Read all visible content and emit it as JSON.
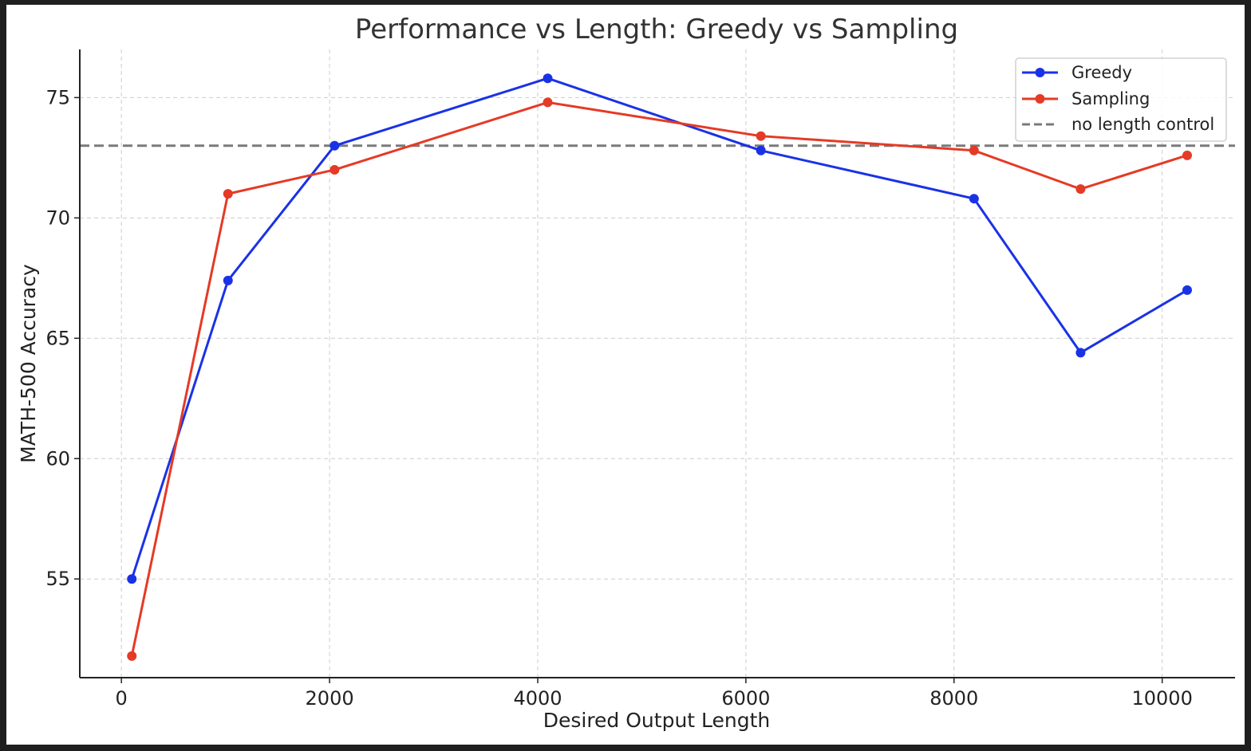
{
  "chart_data": {
    "type": "line",
    "title": "Performance vs Length: Greedy vs Sampling",
    "xlabel": "Desired Output Length",
    "ylabel": "MATH-500 Accuracy",
    "xlim": [
      -400,
      10700
    ],
    "ylim": [
      50.9,
      77.0
    ],
    "xticks": [
      0,
      2000,
      4000,
      6000,
      8000,
      10000
    ],
    "yticks": [
      55,
      60,
      65,
      70,
      75
    ],
    "grid": true,
    "legend_position": "top-right",
    "x": [
      100,
      1024,
      2048,
      4096,
      6144,
      8192,
      9216,
      10240
    ],
    "series": [
      {
        "name": "Greedy",
        "color": "#1a32e6",
        "values": [
          55.0,
          67.4,
          73.0,
          75.8,
          72.8,
          70.8,
          64.4,
          67.0
        ]
      },
      {
        "name": "Sampling",
        "color": "#e53a25",
        "values": [
          51.8,
          71.0,
          72.0,
          74.8,
          73.4,
          72.8,
          71.2,
          72.6
        ]
      }
    ],
    "reference_line": {
      "name": "no length control",
      "value": 73.0,
      "color": "#7a7a7a",
      "style": "dashed"
    }
  }
}
